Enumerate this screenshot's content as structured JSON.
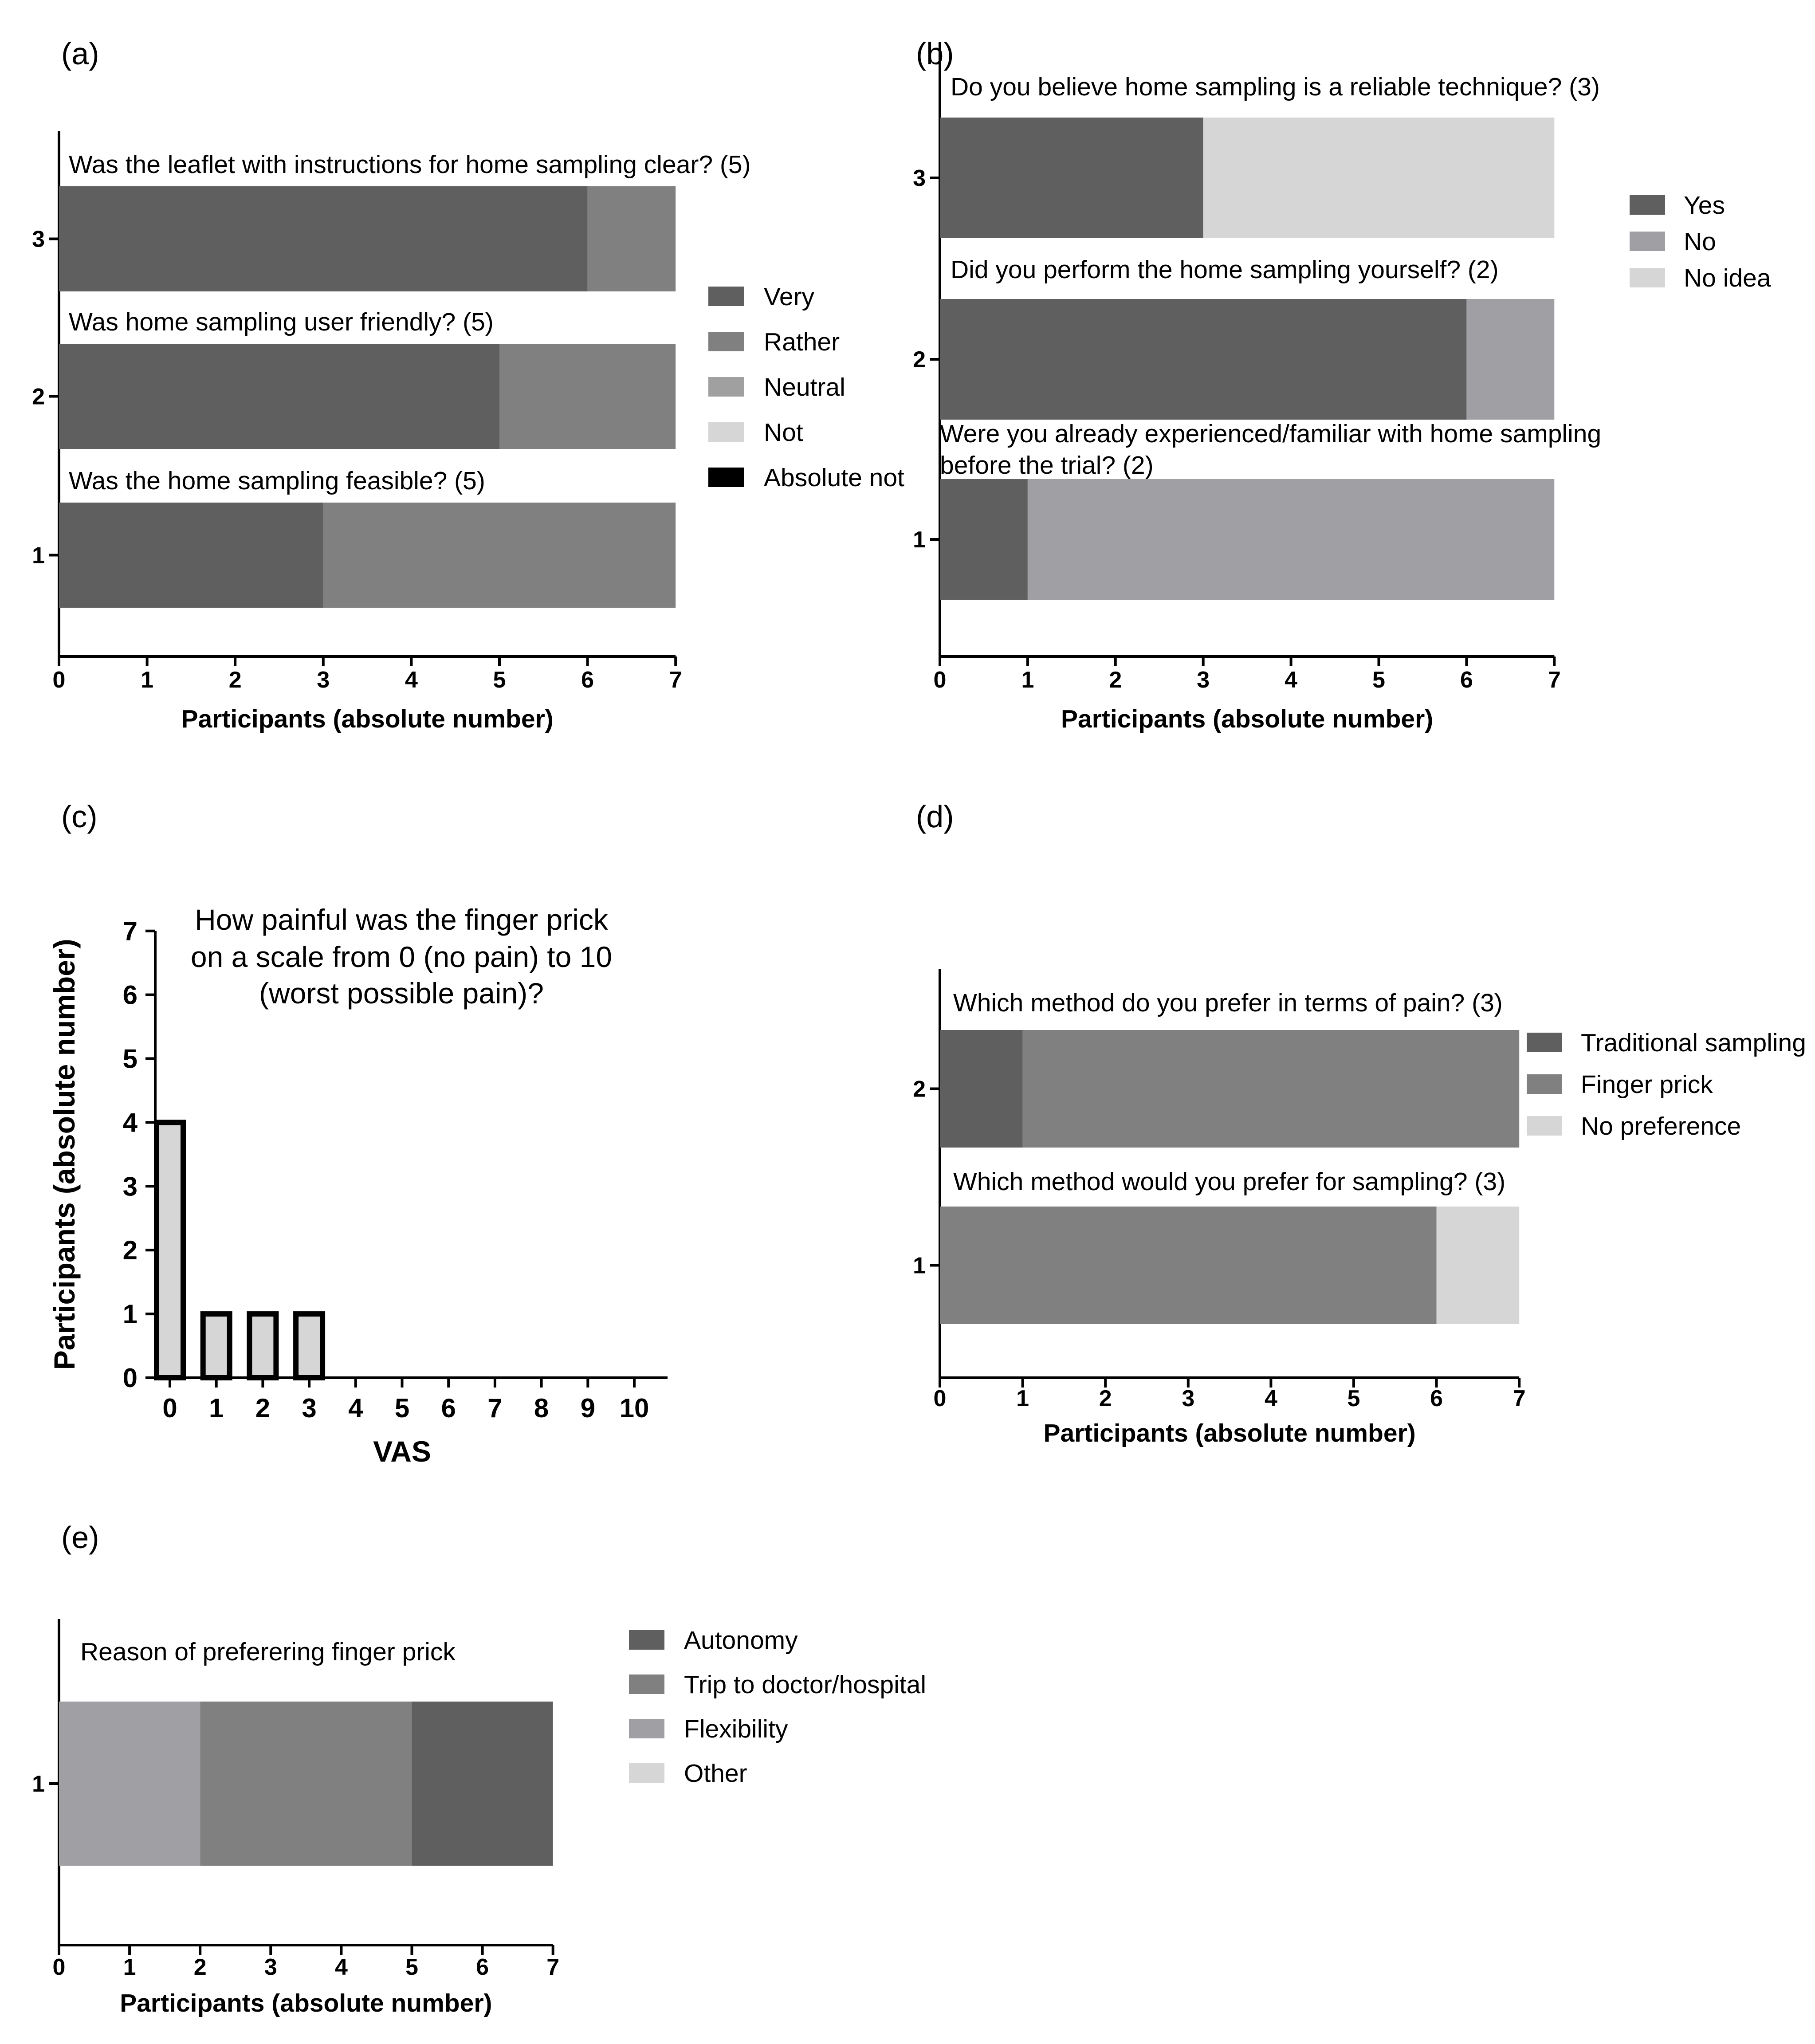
{
  "colors": {
    "very": "#5f5f5f",
    "rather": "#808080",
    "neutral": "#a0a0a0",
    "not": "#d6d6d6",
    "absolute_not": "#000000",
    "yes": "#5f5f5f",
    "no": "#a0a0a4",
    "no_idea": "#d6d6d6",
    "traditional": "#5f5f5f",
    "finger_prick": "#808080",
    "no_preference": "#d6d6d6",
    "autonomy": "#5f5f5f",
    "trip": "#808080",
    "flexibility": "#a0a0a4",
    "other": "#d6d6d6",
    "vas_bar": "#d6d6d6"
  },
  "chart_data": [
    {
      "id": "a",
      "panel_label": "(a)",
      "type": "bar",
      "orientation": "horizontal",
      "stacked": true,
      "xlabel": "Participants (absolute number)",
      "xlim": [
        0,
        7
      ],
      "xticks": [
        "0",
        "1",
        "2",
        "3",
        "4",
        "5",
        "6",
        "7"
      ],
      "rows": [
        {
          "tick": "3",
          "question": "Was the leaflet with instructions for home sampling clear? (5)",
          "values": [
            6,
            1,
            0,
            0,
            0
          ]
        },
        {
          "tick": "2",
          "question": "Was home sampling user friendly? (5)",
          "values": [
            5,
            2,
            0,
            0,
            0
          ]
        },
        {
          "tick": "1",
          "question": "Was the home sampling feasible? (5)",
          "values": [
            3,
            4,
            0,
            0,
            0
          ]
        }
      ],
      "legend": [
        "Very",
        "Rather",
        "Neutral",
        "Not",
        "Absolute not"
      ]
    },
    {
      "id": "b",
      "panel_label": "(b)",
      "type": "bar",
      "orientation": "horizontal",
      "stacked": true,
      "xlabel": "Participants (absolute number)",
      "xlim": [
        0,
        7
      ],
      "xticks": [
        "0",
        "1",
        "2",
        "3",
        "4",
        "5",
        "6",
        "7"
      ],
      "rows": [
        {
          "tick": "3",
          "question": [
            "Do you believe home sampling is a reliable technique? (3)"
          ],
          "values": [
            3,
            0,
            4
          ]
        },
        {
          "tick": "2",
          "question": [
            "Did you perform the home sampling yourself? (2)"
          ],
          "values": [
            6,
            1,
            0
          ]
        },
        {
          "tick": "1",
          "question": [
            "Were you already experienced/familiar with home sampling",
            "before the trial? (2)"
          ],
          "values": [
            1,
            6,
            0
          ]
        }
      ],
      "legend": [
        "Yes",
        "No",
        "No idea"
      ]
    },
    {
      "id": "c",
      "panel_label": "(c)",
      "type": "bar",
      "title": [
        "How painful was the finger prick",
        "on a scale from 0 (no pain) to 10",
        "(worst possible pain)?"
      ],
      "xlabel": "VAS",
      "ylabel": "Participants (absolute number)",
      "categories": [
        "0",
        "1",
        "2",
        "3",
        "4",
        "5",
        "6",
        "7",
        "8",
        "9",
        "10"
      ],
      "values": [
        4,
        1,
        1,
        1,
        0,
        0,
        0,
        0,
        0,
        0,
        0
      ],
      "ylim": [
        0,
        7
      ],
      "yticks": [
        "0",
        "1",
        "2",
        "3",
        "4",
        "5",
        "6",
        "7"
      ]
    },
    {
      "id": "d",
      "panel_label": "(d)",
      "type": "bar",
      "orientation": "horizontal",
      "stacked": true,
      "xlabel": "Participants (absolute number)",
      "xlim": [
        0,
        7
      ],
      "xticks": [
        "0",
        "1",
        "2",
        "3",
        "4",
        "5",
        "6",
        "7"
      ],
      "rows": [
        {
          "tick": "2",
          "question": "Which method do you prefer in terms of pain? (3)",
          "values": [
            1,
            6,
            0
          ]
        },
        {
          "tick": "1",
          "question": "Which method would you prefer for sampling? (3)",
          "values": [
            0,
            6,
            1
          ]
        }
      ],
      "legend": [
        "Traditional sampling",
        "Finger prick",
        "No preference"
      ]
    },
    {
      "id": "e",
      "panel_label": "(e)",
      "type": "bar",
      "orientation": "horizontal",
      "stacked": true,
      "xlabel": "Participants (absolute number)",
      "xlim": [
        0,
        7
      ],
      "xticks": [
        "0",
        "1",
        "2",
        "3",
        "4",
        "5",
        "6",
        "7"
      ],
      "rows": [
        {
          "tick": "1",
          "question": "Reason of preferering finger prick",
          "segments_left_to_right": [
            "Flexibility",
            "Trip to doctor/hospital",
            "Autonomy"
          ],
          "values": [
            2,
            3,
            2
          ]
        }
      ],
      "legend": [
        "Autonomy",
        "Trip to doctor/hospital",
        "Flexibility",
        "Other"
      ]
    }
  ]
}
